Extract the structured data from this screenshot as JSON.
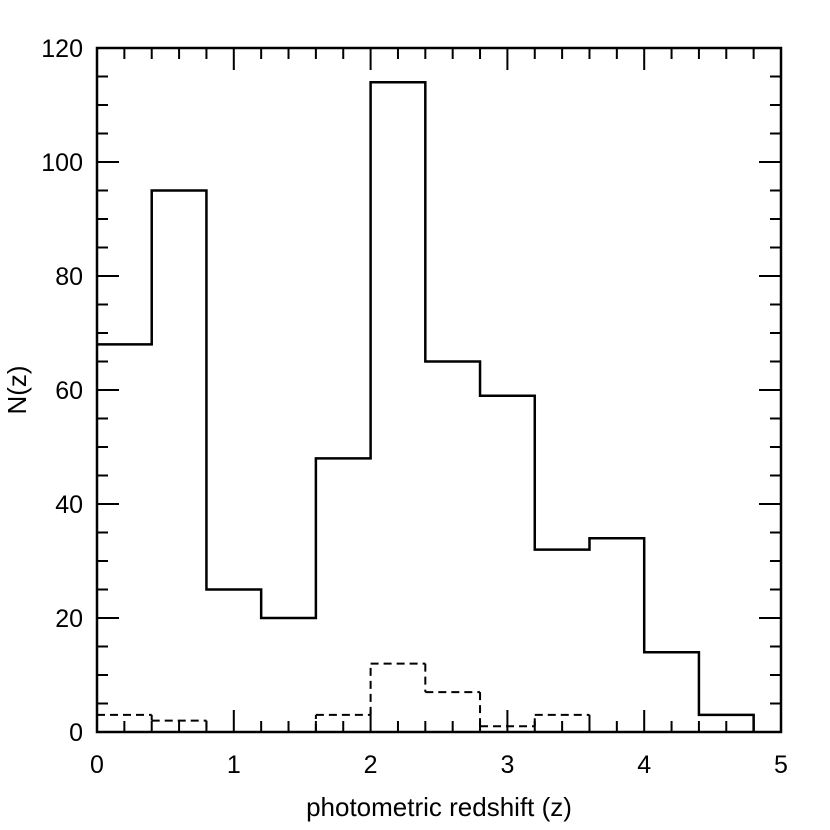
{
  "chart_data": {
    "type": "bar",
    "title": "",
    "xlabel": "photometric redshift (z)",
    "ylabel": "N(z)",
    "xlim": [
      0,
      5
    ],
    "ylim": [
      0,
      120
    ],
    "x_ticks": [
      0,
      1,
      2,
      3,
      4,
      5
    ],
    "y_ticks": [
      0,
      20,
      40,
      60,
      80,
      100,
      120
    ],
    "x_tick_labels": [
      "0",
      "1",
      "2",
      "3",
      "4",
      "5"
    ],
    "y_tick_labels": [
      "0",
      "20",
      "40",
      "60",
      "80",
      "100",
      "120"
    ],
    "x_minor_step": 0.2,
    "y_minor_step": 5,
    "grid": false,
    "bin_edges": [
      0.0,
      0.4,
      0.8,
      1.2,
      1.6,
      2.0,
      2.4,
      2.8,
      3.2,
      3.6,
      4.0,
      4.4,
      4.8
    ],
    "series": [
      {
        "style": "solid",
        "values": [
          68,
          95,
          25,
          20,
          48,
          114,
          65,
          59,
          32,
          34,
          14,
          3
        ]
      },
      {
        "style": "dashed",
        "values": [
          3,
          2,
          0,
          0,
          3,
          12,
          7,
          1,
          3,
          0,
          0,
          0
        ]
      }
    ]
  }
}
